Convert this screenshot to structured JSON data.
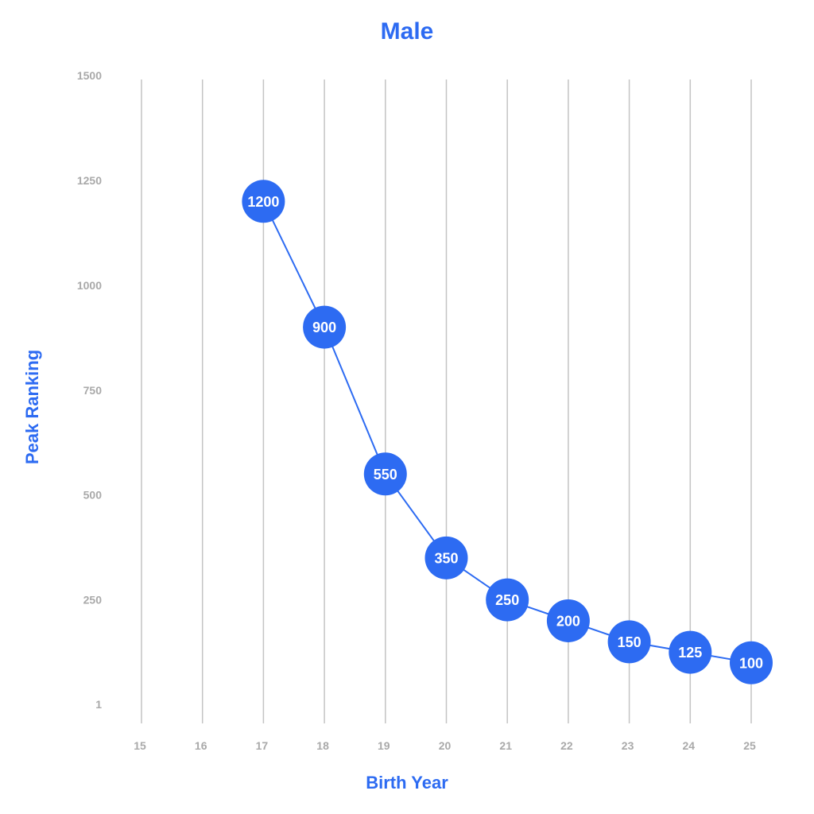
{
  "chart_data": {
    "type": "line",
    "title": "Male",
    "xlabel": "Birth Year",
    "ylabel": "Peak Ranking",
    "x_ticks": [
      "15",
      "16",
      "17",
      "18",
      "19",
      "20",
      "21",
      "22",
      "23",
      "24",
      "25"
    ],
    "y_ticks": [
      "1",
      "250",
      "500",
      "750",
      "1000",
      "1250",
      "1500"
    ],
    "ylim": [
      1,
      1500
    ],
    "grid": "vertical",
    "legend": "none",
    "series": [
      {
        "x": [
          17,
          18,
          19,
          20,
          21,
          22,
          23,
          24,
          25
        ],
        "values": [
          1200,
          900,
          550,
          350,
          250,
          200,
          150,
          125,
          100
        ],
        "labels": [
          "1200",
          "900",
          "550",
          "350",
          "250",
          "200",
          "150",
          "125",
          "100"
        ]
      }
    ],
    "colors": {
      "accent": "#2d6bf2",
      "grid": "#c4c4c4",
      "tick": "#a9a9a9",
      "point_text": "#ffffff"
    }
  }
}
